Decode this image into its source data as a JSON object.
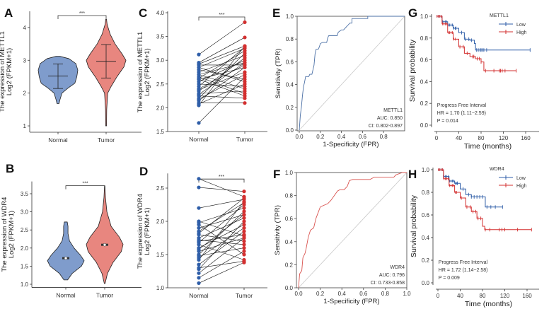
{
  "panel_letters": [
    "A",
    "B",
    "C",
    "D",
    "E",
    "F",
    "G",
    "H"
  ],
  "colors": {
    "normal": "#7f9ccc",
    "tumor": "#e8867f",
    "blue": "#2f5ea8",
    "red": "#d32f2f",
    "roc_blue": "#4a6fa5",
    "roc_red": "#d9534f",
    "diag": "#c8c8c8"
  },
  "chart_data": [
    {
      "id": "A",
      "type": "violin",
      "ylabel": [
        "The expression of METTL1",
        "Log2 (FPKM+1)"
      ],
      "categories": [
        "Normal",
        "Tumor"
      ],
      "yticks": [
        "1",
        "2",
        "3",
        "4"
      ],
      "ylim": [
        0.85,
        4.45
      ],
      "significance": "***",
      "series": [
        {
          "name": "Normal",
          "density": [
            [
              1.68,
              0.05
            ],
            [
              1.8,
              0.1
            ],
            [
              2.0,
              0.2
            ],
            [
              2.15,
              0.5
            ],
            [
              2.3,
              0.85
            ],
            [
              2.5,
              0.95
            ],
            [
              2.7,
              1.0
            ],
            [
              2.9,
              0.9
            ],
            [
              3.05,
              0.55
            ],
            [
              3.12,
              0.1
            ]
          ],
          "mean": 2.52,
          "low": 2.14,
          "high": 2.89
        },
        {
          "name": "Tumor",
          "density": [
            [
              1.0,
              0.02
            ],
            [
              1.5,
              0.03
            ],
            [
              2.0,
              0.08
            ],
            [
              2.2,
              0.25
            ],
            [
              2.5,
              0.55
            ],
            [
              2.8,
              0.9
            ],
            [
              3.0,
              1.0
            ],
            [
              3.2,
              0.8
            ],
            [
              3.5,
              0.45
            ],
            [
              3.8,
              0.2
            ],
            [
              4.1,
              0.05
            ],
            [
              4.25,
              0.02
            ]
          ],
          "mean": 2.97,
          "low": 2.46,
          "high": 3.48
        }
      ]
    },
    {
      "id": "B",
      "type": "violin",
      "ylabel": [
        "The expression of WDR4",
        "Log2 (FPKM+1)"
      ],
      "categories": [
        "Normal",
        "Tumor"
      ],
      "yticks": [
        "1.0",
        "1.5",
        "2.0",
        "2.5",
        "3.0",
        "3.5"
      ],
      "ylim": [
        0.95,
        3.8
      ],
      "significance": "***",
      "series": [
        {
          "name": "Normal",
          "density": [
            [
              1.12,
              0.1
            ],
            [
              1.3,
              0.35
            ],
            [
              1.5,
              0.85
            ],
            [
              1.65,
              1.0
            ],
            [
              1.8,
              0.8
            ],
            [
              2.0,
              0.45
            ],
            [
              2.2,
              0.2
            ],
            [
              2.4,
              0.12
            ],
            [
              2.6,
              0.12
            ],
            [
              2.72,
              0.08
            ]
          ],
          "median": 1.72
        },
        {
          "name": "Tumor",
          "density": [
            [
              1.02,
              0.02
            ],
            [
              1.3,
              0.15
            ],
            [
              1.6,
              0.45
            ],
            [
              1.9,
              0.9
            ],
            [
              2.1,
              1.0
            ],
            [
              2.3,
              0.8
            ],
            [
              2.6,
              0.35
            ],
            [
              3.0,
              0.12
            ],
            [
              3.4,
              0.04
            ],
            [
              3.72,
              0.01
            ]
          ],
          "median": 2.09
        }
      ]
    },
    {
      "id": "C",
      "type": "paired",
      "ylabel": [
        "The expression of METTL1",
        "Log2 (FPKM+1)"
      ],
      "categories": [
        "Normal",
        "Tumor"
      ],
      "yticks": [
        "1.5",
        "2.0",
        "2.5",
        "3.0",
        "3.5",
        "4.0"
      ],
      "ylim": [
        1.5,
        4.0
      ],
      "significance": "***",
      "pairs": [
        [
          3.12,
          3.8
        ],
        [
          2.95,
          3.48
        ],
        [
          2.92,
          3.3
        ],
        [
          2.9,
          2.9
        ],
        [
          2.85,
          3.25
        ],
        [
          2.8,
          2.6
        ],
        [
          2.75,
          3.1
        ],
        [
          2.7,
          2.95
        ],
        [
          2.65,
          2.3
        ],
        [
          2.62,
          3.2
        ],
        [
          2.6,
          2.85
        ],
        [
          2.55,
          3.0
        ],
        [
          2.5,
          2.45
        ],
        [
          2.45,
          3.28
        ],
        [
          2.4,
          2.9
        ],
        [
          2.38,
          2.75
        ],
        [
          2.35,
          3.05
        ],
        [
          2.3,
          2.35
        ],
        [
          2.28,
          2.95
        ],
        [
          2.25,
          2.2
        ],
        [
          2.2,
          3.15
        ],
        [
          2.18,
          2.7
        ],
        [
          2.15,
          2.85
        ],
        [
          2.1,
          2.1
        ],
        [
          2.08,
          2.5
        ],
        [
          2.05,
          3.3
        ],
        [
          2.6,
          2.25
        ],
        [
          2.7,
          2.4
        ],
        [
          2.85,
          2.55
        ],
        [
          1.68,
          2.65
        ]
      ]
    },
    {
      "id": "D",
      "type": "paired",
      "ylabel": [
        "The expression of WDR4",
        "Log2 (FPKM+1)"
      ],
      "categories": [
        "Normal",
        "Tumor"
      ],
      "yticks": [
        "1.0",
        "1.5",
        "2.0",
        "2.5"
      ],
      "ylim": [
        1.0,
        2.7
      ],
      "significance": "***",
      "pairs": [
        [
          2.64,
          2.37
        ],
        [
          2.51,
          2.45
        ],
        [
          2.2,
          2.33
        ],
        [
          2.0,
          1.78
        ],
        [
          1.98,
          2.2
        ],
        [
          1.95,
          1.5
        ],
        [
          1.9,
          2.1
        ],
        [
          1.85,
          2.28
        ],
        [
          1.8,
          1.7
        ],
        [
          1.75,
          2.05
        ],
        [
          1.7,
          1.8
        ],
        [
          1.68,
          2.25
        ],
        [
          1.65,
          1.42
        ],
        [
          1.6,
          1.95
        ],
        [
          1.55,
          1.75
        ],
        [
          1.5,
          2.15
        ],
        [
          1.48,
          1.6
        ],
        [
          1.45,
          1.9
        ],
        [
          1.42,
          2.3
        ],
        [
          1.35,
          1.85
        ],
        [
          1.3,
          1.4
        ],
        [
          1.28,
          2.0
        ],
        [
          1.22,
          1.75
        ],
        [
          1.15,
          1.55
        ],
        [
          1.07,
          1.38
        ],
        [
          1.72,
          1.65
        ],
        [
          1.82,
          2.35
        ],
        [
          1.58,
          2.1
        ]
      ]
    },
    {
      "id": "E",
      "type": "roc",
      "xlabel": "1-Specificity (FPR)",
      "ylabel": "Sensitivity (TPR)",
      "xticks": [
        "0.0",
        "0.2",
        "0.4",
        "0.6",
        "0.8"
      ],
      "yticks": [
        "0.0",
        "0.2",
        "0.4",
        "0.6",
        "0.8",
        "1.0"
      ],
      "gene": "METTL1",
      "auc": "AUC: 0.850",
      "ci": "CI: 0.802-0.897",
      "points": [
        [
          0,
          0
        ],
        [
          0.01,
          0.13
        ],
        [
          0.02,
          0.2
        ],
        [
          0.03,
          0.3
        ],
        [
          0.04,
          0.38
        ],
        [
          0.05,
          0.42
        ],
        [
          0.06,
          0.47
        ],
        [
          0.09,
          0.47
        ],
        [
          0.1,
          0.49
        ],
        [
          0.12,
          0.49
        ],
        [
          0.13,
          0.53
        ],
        [
          0.14,
          0.57
        ],
        [
          0.15,
          0.67
        ],
        [
          0.16,
          0.71
        ],
        [
          0.18,
          0.71
        ],
        [
          0.19,
          0.73
        ],
        [
          0.2,
          0.76
        ],
        [
          0.22,
          0.77
        ],
        [
          0.26,
          0.77
        ],
        [
          0.27,
          0.81
        ],
        [
          0.28,
          0.83
        ],
        [
          0.36,
          0.83
        ],
        [
          0.37,
          0.86
        ],
        [
          0.4,
          0.88
        ],
        [
          0.42,
          0.88
        ],
        [
          0.44,
          0.9
        ],
        [
          0.46,
          0.92
        ],
        [
          0.48,
          0.94
        ],
        [
          0.5,
          0.94
        ],
        [
          0.5,
          0.98
        ],
        [
          0.65,
          0.98
        ],
        [
          0.65,
          1.0
        ],
        [
          1,
          1
        ]
      ]
    },
    {
      "id": "F",
      "type": "roc",
      "xlabel": "1-Specificity (FPR)",
      "ylabel": "Sensitivity (TPR)",
      "xticks": [
        "0.0",
        "0.2",
        "0.4",
        "0.6",
        "0.8",
        "1.0"
      ],
      "yticks": [
        "0.0",
        "0.2",
        "0.4",
        "0.6",
        "0.8",
        "1.0"
      ],
      "gene": "WDR4",
      "auc": "AUC: 0.796",
      "ci": "CI: 0.733-0.858",
      "points": [
        [
          0,
          0
        ],
        [
          0.01,
          0.12
        ],
        [
          0.03,
          0.15
        ],
        [
          0.04,
          0.26
        ],
        [
          0.06,
          0.3
        ],
        [
          0.07,
          0.34
        ],
        [
          0.09,
          0.44
        ],
        [
          0.11,
          0.5
        ],
        [
          0.14,
          0.52
        ],
        [
          0.16,
          0.6
        ],
        [
          0.18,
          0.65
        ],
        [
          0.2,
          0.7
        ],
        [
          0.22,
          0.71
        ],
        [
          0.27,
          0.73
        ],
        [
          0.3,
          0.76
        ],
        [
          0.33,
          0.8
        ],
        [
          0.36,
          0.84
        ],
        [
          0.38,
          0.85
        ],
        [
          0.42,
          0.85
        ],
        [
          0.45,
          0.88
        ],
        [
          0.47,
          0.93
        ],
        [
          0.5,
          0.94
        ],
        [
          0.66,
          0.94
        ],
        [
          0.7,
          0.96
        ],
        [
          0.88,
          0.96
        ],
        [
          0.9,
          0.98
        ],
        [
          0.96,
          1.0
        ],
        [
          1,
          1
        ]
      ]
    },
    {
      "id": "G",
      "type": "km",
      "xlabel": "Time (months)",
      "ylabel": "Survival probability",
      "xticks": [
        "0",
        "40",
        "80",
        "120",
        "160"
      ],
      "yticks": [
        "0.0",
        "0.2",
        "0.4",
        "0.6",
        "0.8",
        "1.0"
      ],
      "legend_title": "METTL1",
      "legend": "top-right",
      "stats": [
        "Progress Free Interval",
        "HR = 1.70 (1.11−2.59)",
        "P = 0.014"
      ],
      "series": [
        {
          "name": "Low",
          "steps": [
            [
              0,
              1
            ],
            [
              10,
              0.95
            ],
            [
              20,
              0.92
            ],
            [
              30,
              0.89
            ],
            [
              40,
              0.85
            ],
            [
              50,
              0.79
            ],
            [
              60,
              0.78
            ],
            [
              68,
              0.75
            ],
            [
              70,
              0.69
            ],
            [
              168,
              0.69
            ]
          ],
          "censor": [
            35,
            45,
            52,
            58,
            63,
            72,
            75,
            78,
            80,
            83,
            85,
            90,
            168
          ]
        },
        {
          "name": "High",
          "steps": [
            [
              0,
              1
            ],
            [
              10,
              0.93
            ],
            [
              20,
              0.85
            ],
            [
              30,
              0.79
            ],
            [
              40,
              0.72
            ],
            [
              50,
              0.66
            ],
            [
              60,
              0.63
            ],
            [
              70,
              0.61
            ],
            [
              80,
              0.58
            ],
            [
              85,
              0.5
            ],
            [
              143,
              0.5
            ]
          ],
          "censor": [
            42,
            48,
            55,
            65,
            67,
            73,
            77,
            80,
            88,
            103,
            113,
            115,
            118,
            123,
            143
          ]
        }
      ]
    },
    {
      "id": "H",
      "type": "km",
      "xlabel": "Time (months)",
      "ylabel": "Survival probability",
      "xticks": [
        "0",
        "40",
        "80",
        "120",
        "160"
      ],
      "yticks": [
        "0.0",
        "0.2",
        "0.4",
        "0.6",
        "0.8",
        "1.0"
      ],
      "legend_title": "WDR4",
      "legend": "top-right",
      "stats": [
        "Progress Free Interval",
        "HR = 1.72 (1.14−2.58)",
        "P = 0.009"
      ],
      "series": [
        {
          "name": "Low",
          "steps": [
            [
              0,
              1
            ],
            [
              10,
              0.94
            ],
            [
              20,
              0.9
            ],
            [
              30,
              0.88
            ],
            [
              40,
              0.83
            ],
            [
              50,
              0.78
            ],
            [
              60,
              0.76
            ],
            [
              84,
              0.76
            ],
            [
              85,
              0.67
            ],
            [
              116,
              0.67
            ]
          ],
          "censor": [
            35,
            45,
            55,
            60,
            65,
            70,
            75,
            80,
            88,
            95,
            103,
            116
          ]
        },
        {
          "name": "High",
          "steps": [
            [
              0,
              1
            ],
            [
              10,
              0.92
            ],
            [
              20,
              0.86
            ],
            [
              30,
              0.8
            ],
            [
              40,
              0.75
            ],
            [
              50,
              0.67
            ],
            [
              60,
              0.63
            ],
            [
              70,
              0.57
            ],
            [
              80,
              0.5
            ],
            [
              84,
              0.47
            ],
            [
              168,
              0.47
            ]
          ],
          "censor": [
            42,
            52,
            58,
            63,
            68,
            72,
            77,
            85,
            93,
            110,
            115,
            120,
            143,
            168
          ]
        }
      ]
    }
  ]
}
